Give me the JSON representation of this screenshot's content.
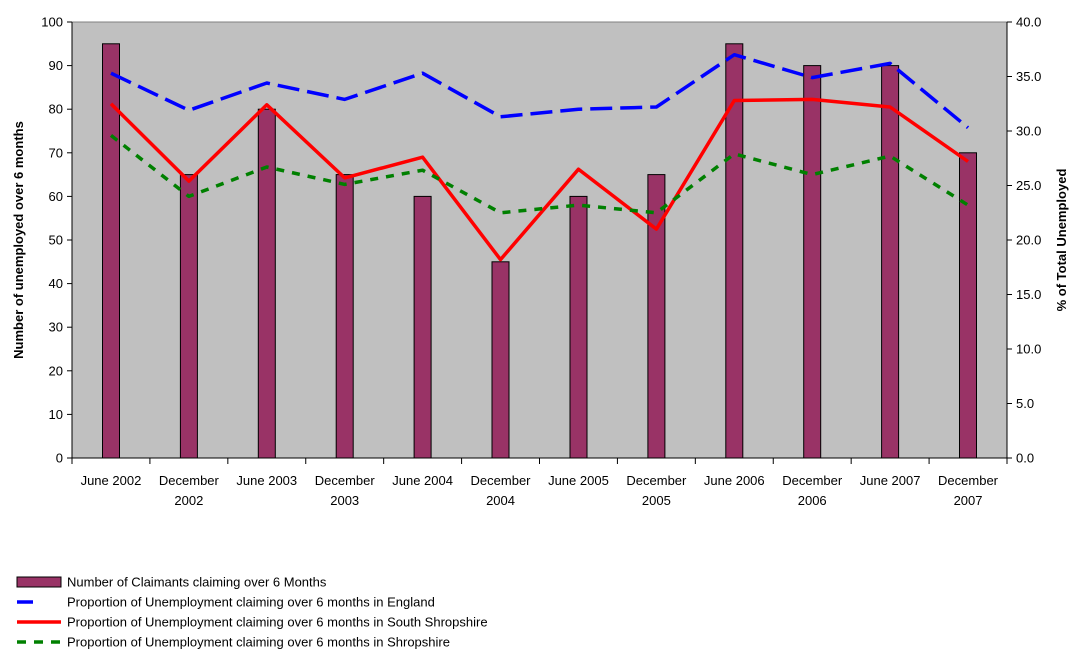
{
  "chart_data": {
    "type": "bar",
    "categories": [
      [
        "June 2002"
      ],
      [
        "December",
        "2002"
      ],
      [
        "June 2003"
      ],
      [
        "December",
        "2003"
      ],
      [
        "June 2004"
      ],
      [
        "December",
        "2004"
      ],
      [
        "June 2005"
      ],
      [
        "December",
        "2005"
      ],
      [
        "June 2006"
      ],
      [
        "December",
        "2006"
      ],
      [
        "June 2007"
      ],
      [
        "December",
        "2007"
      ]
    ],
    "y_left": {
      "label": "Number of unemployed over 6 months",
      "lim": [
        0,
        100
      ],
      "ticks": [
        "0",
        "10",
        "20",
        "30",
        "40",
        "50",
        "60",
        "70",
        "80",
        "90",
        "100"
      ]
    },
    "y_right": {
      "label": "% of Total Unemployed",
      "lim": [
        0,
        40
      ],
      "ticks": [
        "0.0",
        "5.0",
        "10.0",
        "15.0",
        "20.0",
        "25.0",
        "30.0",
        "35.0",
        "40.0"
      ]
    },
    "series": [
      {
        "name": "Number of Claimants claiming over 6 Months",
        "kind": "bar",
        "axis": "left",
        "color": "#993366",
        "values": [
          95,
          65,
          80,
          65,
          60,
          45,
          60,
          65,
          95,
          90,
          90,
          70
        ]
      },
      {
        "name": "Proportion of Unemployment claiming over 6 months in England",
        "kind": "line",
        "dash": "long",
        "axis": "right",
        "color": "#0000FF",
        "values": [
          35.3,
          31.9,
          34.4,
          32.9,
          35.3,
          31.3,
          32.0,
          32.2,
          37.0,
          34.9,
          36.2,
          30.3
        ]
      },
      {
        "name": "Proportion of Unemployment claiming over 6 months in South Shropshire",
        "kind": "line",
        "dash": "solid",
        "axis": "right",
        "color": "#FF0000",
        "values": [
          32.5,
          25.4,
          32.4,
          25.7,
          27.6,
          18.2,
          26.5,
          21.0,
          32.8,
          32.9,
          32.2,
          27.2
        ]
      },
      {
        "name": "Proportion of Unemployment claiming over 6 months in Shropshire",
        "kind": "line",
        "dash": "short",
        "axis": "right",
        "color": "#008000",
        "values": [
          29.6,
          24.0,
          26.7,
          25.1,
          26.4,
          22.5,
          23.2,
          22.5,
          27.9,
          26.0,
          27.7,
          23.2
        ]
      }
    ],
    "plot_background": "#C0C0C0",
    "grid": false,
    "legend_position": "bottom-left"
  }
}
